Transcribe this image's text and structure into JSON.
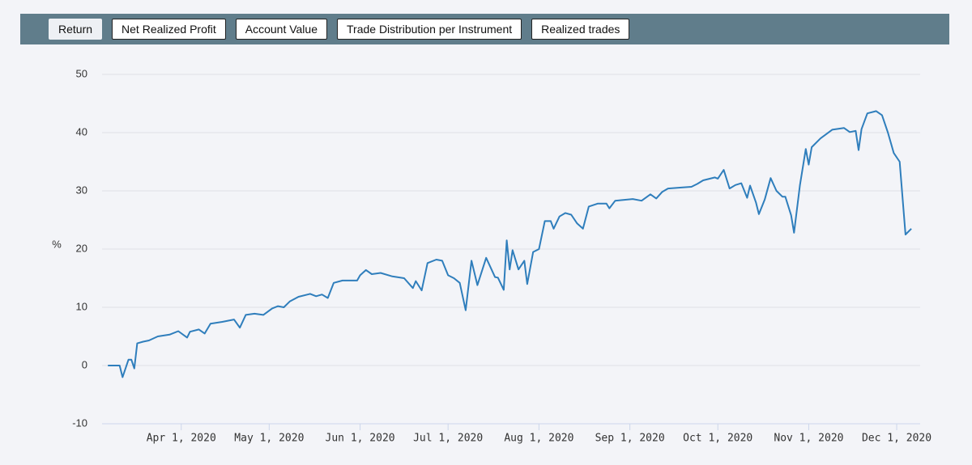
{
  "tabs": [
    "Return",
    "Net Realized Profit",
    "Account Value",
    "Trade Distribution per Instrument",
    "Realized trades"
  ],
  "active_tab": 0,
  "chart_data": {
    "type": "line",
    "ylabel": "%",
    "x": [
      "2020-03-07",
      "2020-03-11",
      "2020-03-12",
      "2020-03-14",
      "2020-03-15",
      "2020-03-16",
      "2020-03-17",
      "2020-03-19",
      "2020-03-21",
      "2020-03-24",
      "2020-03-28",
      "2020-03-31",
      "2020-04-03",
      "2020-04-04",
      "2020-04-07",
      "2020-04-09",
      "2020-04-11",
      "2020-04-15",
      "2020-04-19",
      "2020-04-21",
      "2020-04-23",
      "2020-04-26",
      "2020-04-29",
      "2020-05-02",
      "2020-05-04",
      "2020-05-06",
      "2020-05-08",
      "2020-05-11",
      "2020-05-15",
      "2020-05-17",
      "2020-05-19",
      "2020-05-21",
      "2020-05-23",
      "2020-05-26",
      "2020-05-31",
      "2020-06-01",
      "2020-06-03",
      "2020-06-05",
      "2020-06-08",
      "2020-06-12",
      "2020-06-16",
      "2020-06-19",
      "2020-06-20",
      "2020-06-22",
      "2020-06-24",
      "2020-06-27",
      "2020-06-29",
      "2020-07-01",
      "2020-07-03",
      "2020-07-05",
      "2020-07-07",
      "2020-07-09",
      "2020-07-11",
      "2020-07-14",
      "2020-07-17",
      "2020-07-18",
      "2020-07-20",
      "2020-07-21",
      "2020-07-22",
      "2020-07-23",
      "2020-07-25",
      "2020-07-27",
      "2020-07-28",
      "2020-07-30",
      "2020-08-01",
      "2020-08-03",
      "2020-08-05",
      "2020-08-06",
      "2020-08-08",
      "2020-08-10",
      "2020-08-12",
      "2020-08-14",
      "2020-08-16",
      "2020-08-18",
      "2020-08-21",
      "2020-08-24",
      "2020-08-25",
      "2020-08-27",
      "2020-08-29",
      "2020-09-02",
      "2020-09-05",
      "2020-09-08",
      "2020-09-10",
      "2020-09-12",
      "2020-09-14",
      "2020-09-19",
      "2020-09-22",
      "2020-09-24",
      "2020-09-26",
      "2020-09-30",
      "2020-10-01",
      "2020-10-03",
      "2020-10-05",
      "2020-10-07",
      "2020-10-09",
      "2020-10-11",
      "2020-10-12",
      "2020-10-14",
      "2020-10-15",
      "2020-10-17",
      "2020-10-19",
      "2020-10-21",
      "2020-10-23",
      "2020-10-24",
      "2020-10-26",
      "2020-10-27",
      "2020-10-29",
      "2020-10-31",
      "2020-11-01",
      "2020-11-02",
      "2020-11-05",
      "2020-11-09",
      "2020-11-13",
      "2020-11-15",
      "2020-11-17",
      "2020-11-18",
      "2020-11-19",
      "2020-11-21",
      "2020-11-24",
      "2020-11-26",
      "2020-11-28",
      "2020-11-30",
      "2020-12-02",
      "2020-12-04",
      "2020-12-06"
    ],
    "series": [
      {
        "color": "#2f7ebc",
        "values": [
          0,
          0,
          -2,
          1,
          1,
          -0.5,
          3.8,
          4.1,
          4.3,
          5,
          5.3,
          5.9,
          4.8,
          5.8,
          6.2,
          5.5,
          7.2,
          7.5,
          7.9,
          6.5,
          8.7,
          8.9,
          8.7,
          9.8,
          10.2,
          10,
          11,
          11.8,
          12.3,
          11.9,
          12.2,
          11.6,
          14.2,
          14.6,
          14.6,
          15.5,
          16.4,
          15.7,
          15.9,
          15.3,
          15,
          13.3,
          14.5,
          12.9,
          17.6,
          18.2,
          18,
          15.5,
          15,
          14.2,
          9.5,
          18,
          13.8,
          18.5,
          15.2,
          15.1,
          13,
          21.5,
          16.5,
          19.8,
          16.5,
          18,
          14,
          19.5,
          20,
          24.8,
          24.8,
          23.5,
          25.6,
          26.2,
          25.9,
          24.4,
          23.5,
          27.3,
          27.8,
          27.8,
          27,
          28.3,
          28.4,
          28.6,
          28.3,
          29.4,
          28.7,
          29.8,
          30.4,
          30.6,
          30.7,
          31.2,
          31.8,
          32.3,
          32.1,
          33.6,
          30.4,
          31,
          31.3,
          28.8,
          30.9,
          28,
          26,
          28.5,
          32.2,
          30,
          29,
          29,
          25.8,
          22.8,
          31,
          37.2,
          34.5,
          37.5,
          39,
          40.5,
          40.8,
          40.1,
          40.3,
          37,
          40.6,
          43.3,
          43.7,
          43,
          40,
          36.5,
          35,
          22.5,
          23.5
        ]
      }
    ],
    "xlim": [
      "2020-03-05",
      "2020-12-09"
    ],
    "xticks": [
      {
        "value": "2020-04-01",
        "label": "Apr 1, 2020"
      },
      {
        "value": "2020-05-01",
        "label": "May 1, 2020"
      },
      {
        "value": "2020-06-01",
        "label": "Jun 1, 2020"
      },
      {
        "value": "2020-07-01",
        "label": "Jul 1, 2020"
      },
      {
        "value": "2020-08-01",
        "label": "Aug 1, 2020"
      },
      {
        "value": "2020-09-01",
        "label": "Sep 1, 2020"
      },
      {
        "value": "2020-10-01",
        "label": "Oct 1, 2020"
      },
      {
        "value": "2020-11-01",
        "label": "Nov 1, 2020"
      },
      {
        "value": "2020-12-01",
        "label": "Dec 1, 2020"
      }
    ],
    "ylim": [
      -10,
      50
    ],
    "yticks": [
      -10,
      0,
      10,
      20,
      30,
      40,
      50
    ],
    "grid": true
  }
}
